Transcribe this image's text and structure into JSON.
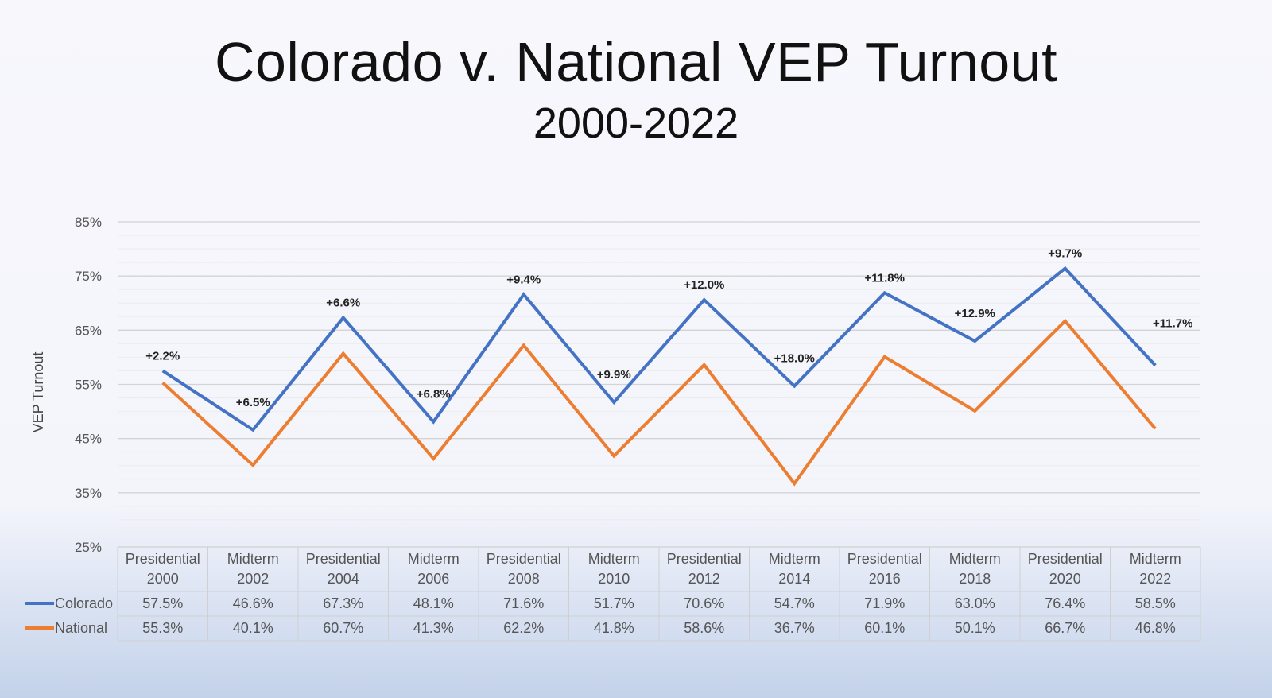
{
  "chart_data": {
    "type": "line",
    "title": "Colorado v. National VEP Turnout",
    "subtitle": "2000-2022",
    "ylabel": "VEP Turnout",
    "ylim": [
      25,
      85
    ],
    "yticks": [
      "85%",
      "75%",
      "65%",
      "55%",
      "45%",
      "35%",
      "25%"
    ],
    "categories": [
      [
        "Presidential",
        "2000"
      ],
      [
        "Midterm",
        "2002"
      ],
      [
        "Presidential",
        "2004"
      ],
      [
        "Midterm",
        "2006"
      ],
      [
        "Presidential",
        "2008"
      ],
      [
        "Midterm",
        "2010"
      ],
      [
        "Presidential",
        "2012"
      ],
      [
        "Midterm",
        "2014"
      ],
      [
        "Presidential",
        "2016"
      ],
      [
        "Midterm",
        "2018"
      ],
      [
        "Presidential",
        "2020"
      ],
      [
        "Midterm",
        "2022"
      ]
    ],
    "series": [
      {
        "name": "Colorado",
        "color": "#4472c4",
        "values": [
          57.5,
          46.6,
          67.3,
          48.1,
          71.6,
          51.7,
          70.6,
          54.7,
          71.9,
          63.0,
          76.4,
          58.5
        ],
        "labels": [
          "57.5%",
          "46.6%",
          "67.3%",
          "48.1%",
          "71.6%",
          "51.7%",
          "70.6%",
          "54.7%",
          "71.9%",
          "63.0%",
          "76.4%",
          "58.5%"
        ]
      },
      {
        "name": "National",
        "color": "#ed7d31",
        "values": [
          55.3,
          40.1,
          60.7,
          41.3,
          62.2,
          41.8,
          58.6,
          36.7,
          60.1,
          50.1,
          66.7,
          46.8
        ],
        "labels": [
          "55.3%",
          "40.1%",
          "60.7%",
          "41.3%",
          "62.2%",
          "41.8%",
          "58.6%",
          "36.7%",
          "60.1%",
          "50.1%",
          "66.7%",
          "46.8%"
        ]
      }
    ],
    "annotations": [
      "+2.2%",
      "+6.5%",
      "+6.6%",
      "+6.8%",
      "+9.4%",
      "+9.9%",
      "+12.0%",
      "+18.0%",
      "+11.8%",
      "+12.9%",
      "+9.7%",
      "+11.7%"
    ],
    "grid": true,
    "legend": "data-table"
  }
}
